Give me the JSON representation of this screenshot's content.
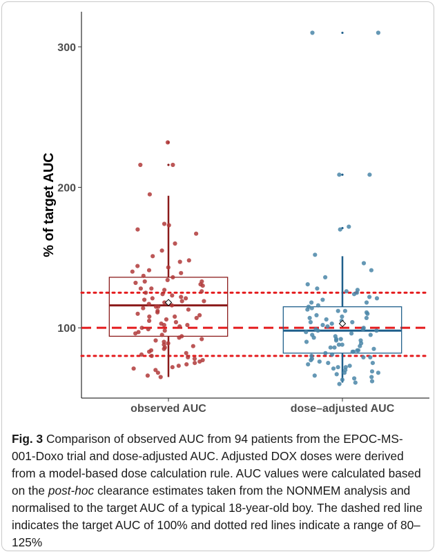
{
  "chart_data": {
    "type": "box",
    "ylabel": "% of target AUC",
    "xlabel": "",
    "ylim": [
      50,
      325
    ],
    "yticks": [
      100,
      200,
      300
    ],
    "grid": false,
    "reference_lines": [
      {
        "y": 100,
        "style": "dashed",
        "color": "#e41a1c"
      },
      {
        "y": 80,
        "style": "dotted",
        "color": "#e41a1c"
      },
      {
        "y": 125,
        "style": "dotted",
        "color": "#e41a1c"
      }
    ],
    "categories": [
      "observed AUC",
      "dose–adjusted AUC"
    ],
    "boxes": [
      {
        "name": "observed AUC",
        "color": "#8b1a1a",
        "point_color": "#b03a3a",
        "whisker_low": 65,
        "q1": 94,
        "median": 116,
        "q3": 136,
        "whisker_high": 194,
        "mean": 118,
        "outliers": [
          232,
          216
        ],
        "points": [
          232,
          216,
          216,
          195,
          174,
          173,
          170,
          167,
          160,
          155,
          151,
          148,
          147,
          144,
          143,
          141,
          139,
          137,
          136,
          134,
          133,
          132,
          131,
          130,
          128,
          127,
          126,
          125,
          124,
          123,
          122,
          121,
          120,
          119,
          118,
          117,
          116,
          115,
          114,
          113,
          112,
          111,
          110,
          109,
          108,
          107,
          106,
          105,
          104,
          103,
          102,
          101,
          100,
          99,
          98,
          97,
          96,
          95,
          94,
          93,
          92,
          91,
          90,
          89,
          88,
          87,
          86,
          85,
          84,
          83,
          82,
          81,
          80,
          79,
          78,
          77,
          76,
          75,
          74,
          73,
          72,
          71,
          70,
          68,
          66,
          65,
          119,
          121,
          128,
          133,
          140,
          115,
          108,
          102
        ]
      },
      {
        "name": "dose–adjusted AUC",
        "color": "#1f5f8b",
        "point_color": "#4a86a8",
        "whisker_low": 61,
        "q1": 82,
        "median": 98,
        "q3": 115,
        "whisker_high": 151,
        "mean": 103,
        "outliers": [
          310,
          209,
          171
        ],
        "points": [
          310,
          310,
          209,
          209,
          172,
          170,
          152,
          146,
          141,
          136,
          131,
          128,
          127,
          125,
          124,
          122,
          120,
          118,
          116,
          115,
          114,
          113,
          112,
          111,
          110,
          109,
          108,
          107,
          106,
          105,
          104,
          103,
          102,
          101,
          100,
          99,
          98,
          97,
          96,
          95,
          94,
          93,
          92,
          91,
          90,
          89,
          88,
          87,
          86,
          85,
          84,
          83,
          82,
          81,
          80,
          79,
          78,
          77,
          76,
          75,
          74,
          73,
          72,
          71,
          70,
          69,
          68,
          67,
          66,
          65,
          64,
          63,
          62,
          61,
          60,
          98,
          95,
          92,
          88,
          84,
          79,
          75,
          72,
          68,
          104,
          107,
          112,
          118,
          121,
          126,
          83,
          86,
          91,
          99
        ]
      }
    ]
  },
  "caption": {
    "label": "Fig. 3",
    "text": " Comparison of observed AUC from 94 patients from the EPOC-MS-001-Doxo trial and dose-adjusted AUC. Adjusted DOX doses were derived from a model-based dose calculation rule. AUC values were calculated based on the ",
    "italic": "post-hoc",
    "text2": " clearance estimates taken from the NONMEM analysis and normalised to the target AUC of a typical 18-year-old boy. The dashed red line indicates the target AUC of 100% and dotted red lines indicate a range of 80–125%"
  }
}
